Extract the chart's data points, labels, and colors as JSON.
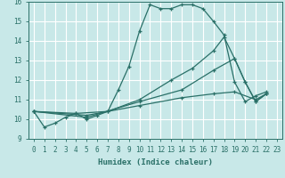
{
  "xlabel": "Humidex (Indice chaleur)",
  "xlim": [
    -0.5,
    23.5
  ],
  "ylim": [
    9,
    16
  ],
  "yticks": [
    9,
    10,
    11,
    12,
    13,
    14,
    15,
    16
  ],
  "xticks": [
    0,
    1,
    2,
    3,
    4,
    5,
    6,
    7,
    8,
    9,
    10,
    11,
    12,
    13,
    14,
    15,
    16,
    17,
    18,
    19,
    20,
    21,
    22,
    23
  ],
  "bg_color": "#c8e8e8",
  "grid_color": "#ffffff",
  "line_color": "#2a7068",
  "lines": [
    {
      "x": [
        0,
        1,
        2,
        3,
        4,
        5,
        6,
        7,
        8,
        9,
        10,
        11,
        12,
        13,
        14,
        15,
        16,
        17,
        18,
        19,
        20,
        21,
        22
      ],
      "y": [
        10.4,
        9.6,
        9.8,
        10.1,
        10.3,
        10.0,
        10.2,
        10.4,
        11.5,
        12.7,
        14.5,
        15.85,
        15.65,
        15.65,
        15.85,
        15.85,
        15.65,
        15.0,
        14.3,
        11.9,
        10.9,
        11.2,
        11.4
      ]
    },
    {
      "x": [
        0,
        4,
        7,
        10,
        13,
        15,
        17,
        18,
        19,
        20,
        21,
        22
      ],
      "y": [
        10.4,
        10.3,
        10.4,
        11.0,
        12.0,
        12.6,
        13.5,
        14.2,
        13.1,
        11.9,
        10.9,
        11.3
      ]
    },
    {
      "x": [
        0,
        5,
        10,
        14,
        17,
        19,
        20,
        21,
        22
      ],
      "y": [
        10.4,
        10.1,
        10.9,
        11.5,
        12.5,
        13.1,
        11.9,
        10.9,
        11.3
      ]
    },
    {
      "x": [
        0,
        5,
        10,
        14,
        17,
        19,
        21,
        22
      ],
      "y": [
        10.4,
        10.2,
        10.7,
        11.1,
        11.3,
        11.4,
        11.0,
        11.3
      ]
    }
  ]
}
